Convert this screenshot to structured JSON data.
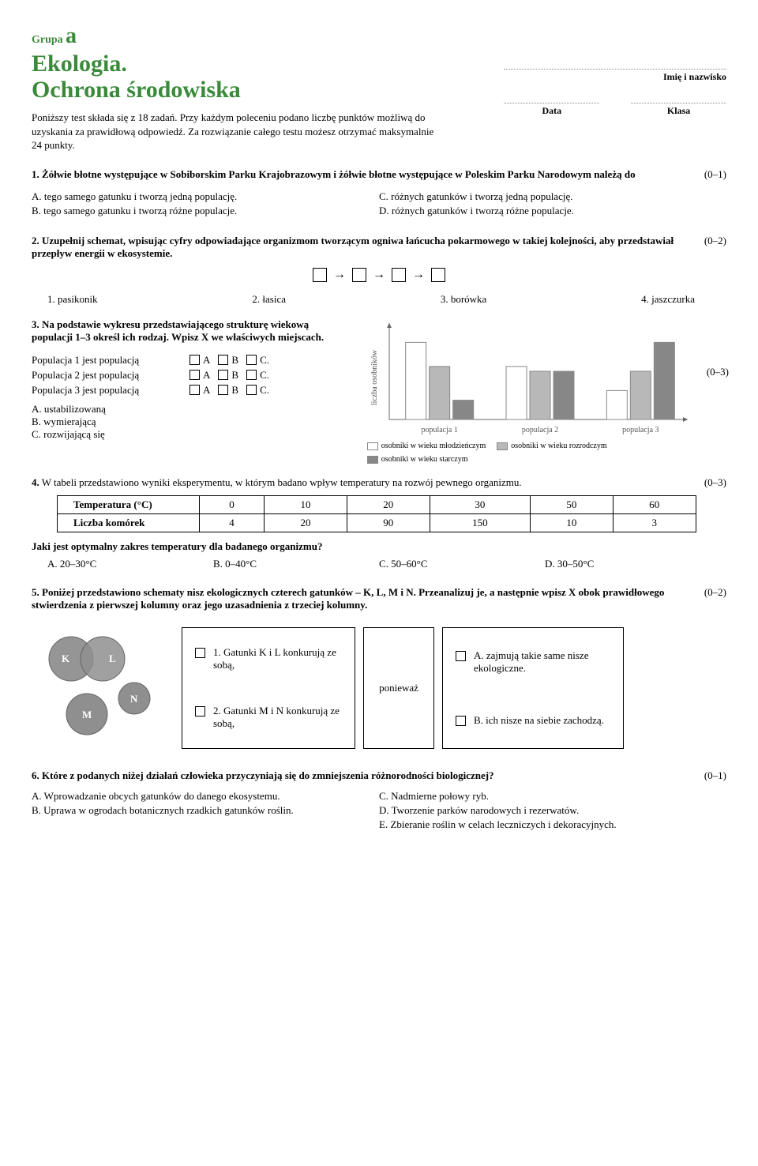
{
  "header": {
    "grupa_prefix": "Grupa",
    "grupa_letter": "a",
    "title_line1": "Ekologia.",
    "title_line2": "Ochrona środowiska",
    "intro": "Poniższy test składa się z 18 zadań. Przy każdym poleceniu podano liczbę punktów możliwą do uzyskania za prawidłową odpowiedź. Za rozwiązanie całego testu możesz otrzymać maksymalnie 24 punkty.",
    "name_label": "Imię i nazwisko",
    "date_label": "Data",
    "class_label": "Klasa"
  },
  "q1": {
    "text": "1. Żółwie błotne występujące w Sobiborskim Parku Krajobrazowym i żółwie błotne występujące w Poleskim Parku Narodowym należą do",
    "pts": "(0–1)",
    "a": "A. tego samego gatunku i tworzą jedną populację.",
    "b": "B. tego samego gatunku i tworzą różne populacje.",
    "c": "C. różnych gatunków i tworzą jedną populację.",
    "d": "D. różnych gatunków i tworzą różne populacje."
  },
  "q2": {
    "text": "2. Uzupełnij schemat, wpisując cyfry odpowiadające organizmom tworzącym ogniwa łańcucha pokarmowego w takiej kolejności, aby przedstawiał przepływ energii w ekosystemie.",
    "pts": "(0–2)",
    "i1": "1. pasikonik",
    "i2": "2. łasica",
    "i3": "3. borówka",
    "i4": "4. jaszczurka"
  },
  "q3": {
    "text": "3. Na podstawie wykresu przedstawiającego strukturę wiekową populacji 1–3 określ ich rodzaj. Wpisz X we właściwych miejscach.",
    "pts": "(0–3)",
    "row1": "Populacja 1 jest populacją",
    "row2": "Populacja 2 jest populacją",
    "row3": "Populacja 3 jest populacją",
    "abc_a": "A",
    "abc_b": "B",
    "abc_c": "C.",
    "opt_a": "A. ustabilizowaną",
    "opt_b": "B. wymierającą",
    "opt_c": "C. rozwijającą się",
    "chart": {
      "ylabel": "liczba osobników",
      "groups": [
        "populacja 1",
        "populacja 2",
        "populacja 3"
      ],
      "series": [
        {
          "name": "osobniki w wieku młodzieńczym",
          "fill": "#ffffff",
          "values": [
            80,
            55,
            30
          ]
        },
        {
          "name": "osobniki w wieku rozrodczym",
          "fill": "#b8b8b8",
          "values": [
            55,
            50,
            50
          ]
        },
        {
          "name": "osobniki w wieku starczym",
          "fill": "#878787",
          "values": [
            20,
            50,
            80
          ]
        }
      ],
      "ymax": 100,
      "bar_stroke": "#888888",
      "axis_color": "#666666",
      "label_fontsize": 10
    }
  },
  "q4": {
    "text1": "4.",
    "text2": " W tabeli przedstawiono wyniki eksperymentu, w którym badano wpływ temperatury na rozwój pewnego organizmu.",
    "pts": "(0–3)",
    "th1": "Temperatura (°C)",
    "th2": "Liczba komórek",
    "cols": [
      "0",
      "10",
      "20",
      "30",
      "50",
      "60"
    ],
    "row2": [
      "4",
      "20",
      "90",
      "150",
      "10",
      "3"
    ],
    "question": "Jaki jest optymalny zakres temperatury dla badanego organizmu?",
    "a": "A. 20–30°C",
    "b": "B. 0–40°C",
    "c": "C. 50–60°C",
    "d": "D. 30–50°C"
  },
  "q5": {
    "text": "5. Poniżej przedstawiono schematy nisz ekologicznych czterech gatunków – K, L, M i N. Przeanalizuj je, a następnie wpisz X obok prawidłowego stwierdzenia z pierwszej kolumny oraz jego uzasadnienia z trzeciej kolumny.",
    "pts": "(0–2)",
    "venn": {
      "K": "K",
      "L": "L",
      "M": "M",
      "N": "N",
      "fill": "#8f8f8f",
      "stroke": "#666666"
    },
    "s1": "1. Gatunki K i L konkurują ze sobą,",
    "s2": "2. Gatunki M i N konkurują ze sobą,",
    "mid": "ponieważ",
    "r1": "A. zajmują takie same nisze ekologiczne.",
    "r2": "B. ich nisze na siebie zachodzą."
  },
  "q6": {
    "text": "6. Które z podanych niżej działań człowieka przyczyniają się do zmniejszenia różnorodności biologicznej?",
    "pts": "(0–1)",
    "a": "A. Wprowadzanie obcych gatunków do danego ekosystemu.",
    "b": "B. Uprawa w ogrodach botanicznych rzadkich gatunków roślin.",
    "c": "C. Nadmierne połowy ryb.",
    "d": "D. Tworzenie parków narodowych i rezerwatów.",
    "e": "E. Zbieranie roślin w celach leczniczych i dekoracyjnych."
  }
}
